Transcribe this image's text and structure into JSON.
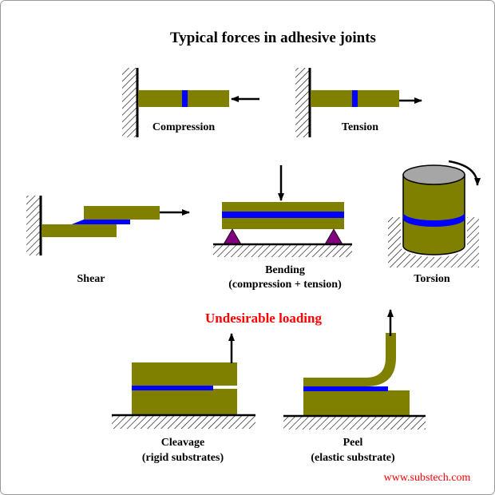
{
  "title": "Typical forces in adhesive joints",
  "labels": {
    "compression": "Compression",
    "tension": "Tension",
    "shear": "Shear",
    "bending": "Bending",
    "bending_sub": "(compression + tension)",
    "torsion": "Torsion",
    "undesirable": "Undesirable loading",
    "cleavage": "Cleavage",
    "cleavage_sub": "(rigid substrates)",
    "peel": "Peel",
    "peel_sub": "(elastic substrate)"
  },
  "watermark": "www.substech.com",
  "colors": {
    "substrate": "#808000",
    "adhesive": "#0000ff",
    "support": "#800080",
    "warning": "#ff0000",
    "cylinder_top": "#a6a6a6"
  }
}
